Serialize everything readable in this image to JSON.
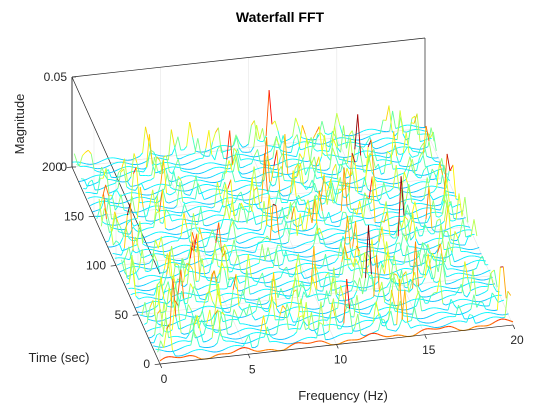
{
  "chart_data": {
    "type": "waterfall-3d",
    "title": "Waterfall FFT",
    "xlabel": "Frequency (Hz)",
    "ylabel": "Time (sec)",
    "zlabel": "Magnitude",
    "xlim": [
      0,
      20
    ],
    "ylim": [
      0,
      200
    ],
    "zlim": [
      0,
      0.05
    ],
    "x_ticks": [
      0,
      5,
      10,
      15,
      20
    ],
    "y_ticks": [
      0,
      50,
      100,
      150,
      200
    ],
    "z_ticks": [
      0,
      0.05
    ],
    "x_tick_labels": [
      "0",
      "5",
      "10",
      "15",
      "20"
    ],
    "y_tick_labels": [
      "0",
      "50",
      "100",
      "150",
      "200"
    ],
    "z_tick_labels": [
      "0",
      "0.05"
    ],
    "colormap": "jet",
    "grid": true,
    "traces_approx": 40,
    "front_trace_peak_magnitude": 0.004,
    "tallest_peak_magnitude": 0.03,
    "typical_peak_magnitude_range": [
      0.006,
      0.018
    ]
  }
}
